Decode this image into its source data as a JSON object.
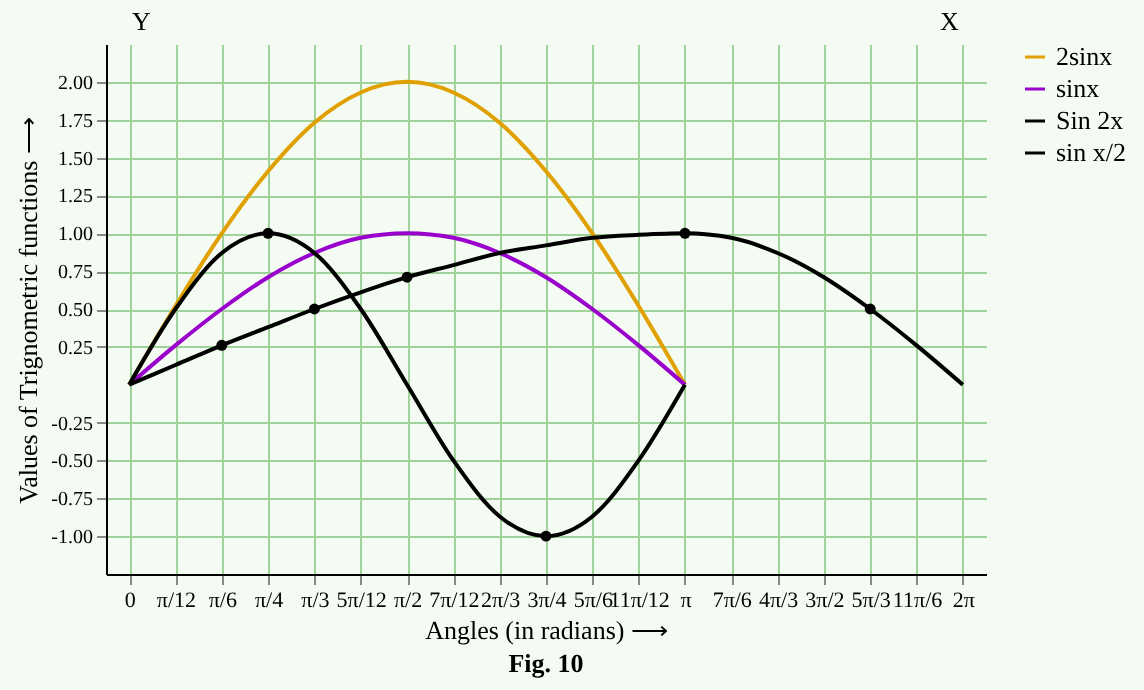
{
  "chart_data": {
    "type": "line",
    "title": "Fig. 10",
    "xlabel": "Angles (in radians) ⟶",
    "ylabel": "Values of Trignometric functions ⟶",
    "annotations": [
      "Y",
      "X"
    ],
    "categories": [
      "0",
      "π/12",
      "π/6",
      "π/4",
      "π/3",
      "5π/12",
      "π/2",
      "7π/12",
      "2π/3",
      "3π/4",
      "5π/6",
      "11π/12",
      "π",
      "7π/6",
      "4π/3",
      "3π/2",
      "5π/3",
      "11π/6",
      "2π"
    ],
    "series": [
      {
        "name": "2sinx",
        "color": "#e0a000",
        "values": [
          0,
          0.52,
          1,
          1.41,
          1.73,
          1.93,
          2,
          1.93,
          1.73,
          1.41,
          1,
          0.52,
          0,
          null,
          null,
          null,
          null,
          null,
          null
        ]
      },
      {
        "name": "sinx",
        "color": "#9900cc",
        "values": [
          0,
          0.26,
          0.5,
          0.71,
          0.87,
          0.97,
          1,
          0.97,
          0.87,
          0.71,
          0.5,
          0.26,
          0,
          null,
          null,
          null,
          null,
          null,
          null
        ]
      },
      {
        "name": "Sin 2x",
        "color": "#000000",
        "values": [
          0,
          0.5,
          0.87,
          1,
          0.87,
          0.5,
          0,
          -0.5,
          -0.87,
          -1,
          -0.87,
          -0.5,
          0,
          null,
          null,
          null,
          null,
          null,
          null
        ]
      },
      {
        "name": "sin x/2",
        "color": "#000000",
        "values": [
          0,
          0.13,
          0.26,
          0.38,
          0.5,
          0.61,
          0.71,
          0.79,
          0.87,
          0.92,
          0.97,
          0.99,
          1,
          0.97,
          0.87,
          0.71,
          0.5,
          0.26,
          0
        ]
      },
      {
        "type": "scatter",
        "color": "#000000",
        "values": [
          null,
          null,
          0.26,
          1,
          0.5,
          null,
          0.71,
          null,
          null,
          -1,
          null,
          null,
          1,
          null,
          null,
          null,
          0.5,
          null,
          null
        ]
      }
    ],
    "ylim": [
      -1.25,
      2.25
    ],
    "yticks": [
      {
        "value": -1,
        "label": "-1.00"
      },
      {
        "value": -0.75,
        "label": "-0.75"
      },
      {
        "value": -0.5,
        "label": "-0.50"
      },
      {
        "value": -0.25,
        "label": "-0.25"
      },
      {
        "value": 0.25,
        "label": "0.25"
      },
      {
        "value": 0.5,
        "label": "0.50"
      },
      {
        "value": 0.75,
        "label": "0.75"
      },
      {
        "value": 1,
        "label": "1.00"
      },
      {
        "value": 1.25,
        "label": "1.25"
      },
      {
        "value": 1.5,
        "label": "1.50"
      },
      {
        "value": 1.75,
        "label": "1.75"
      },
      {
        "value": 2,
        "label": "2.00"
      }
    ],
    "grid": true,
    "legend": "right",
    "line_style": "solid"
  }
}
